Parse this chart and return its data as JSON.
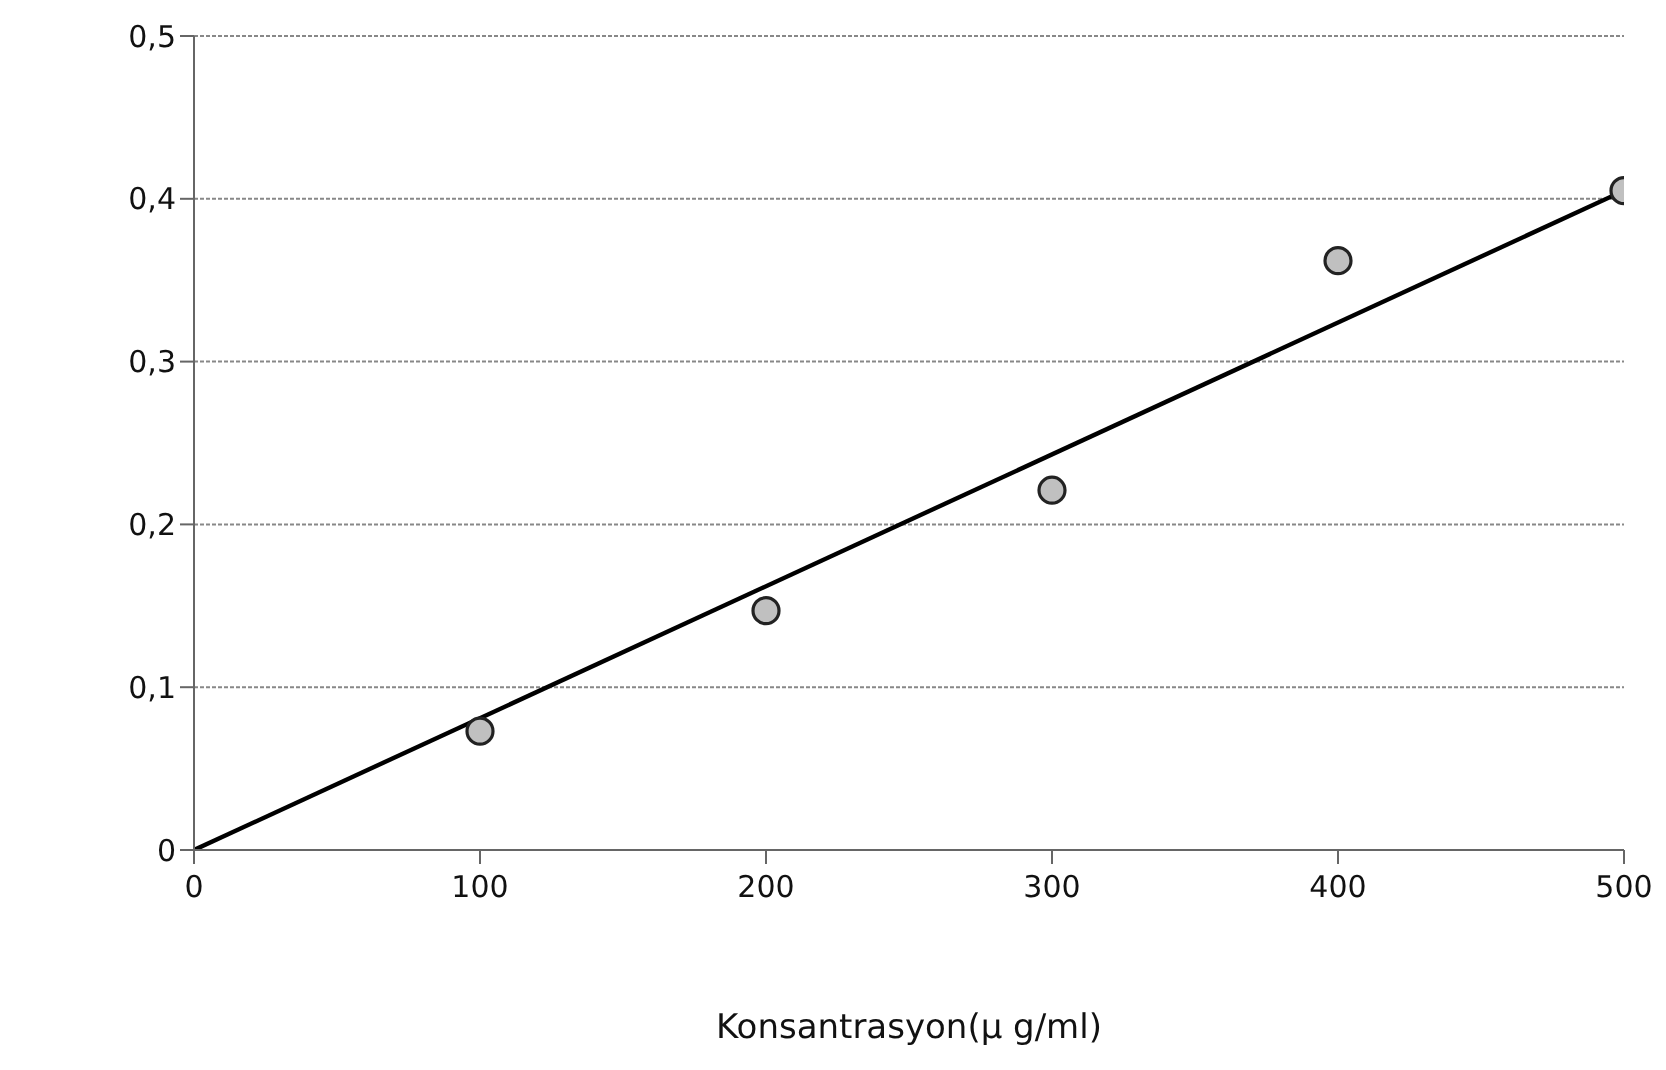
{
  "chart_data": {
    "type": "scatter",
    "xlabel": "Konsantrasyon(µ g/ml)",
    "x": [
      100,
      200,
      300,
      400,
      500
    ],
    "series": [
      {
        "color": "#c0c0c0",
        "marker": "circle",
        "values": [
          0.073,
          0.147,
          0.221,
          0.362,
          0.405
        ]
      },
      {
        "type": "line",
        "color": "#000000",
        "x": [
          0,
          500
        ],
        "values": [
          0,
          0.405
        ],
        "line_style": "solid"
      }
    ],
    "xlim": [
      0,
      500
    ],
    "xticks": [
      0,
      100,
      200,
      300,
      400,
      500
    ],
    "ylim": [
      0,
      0.5
    ],
    "yticks": [
      0,
      {
        "value": 0.1,
        "label": "0,1"
      },
      {
        "value": 0.2,
        "label": "0,2"
      },
      {
        "value": 0.3,
        "label": "0,3"
      },
      {
        "value": 0.4,
        "label": "0,4"
      },
      {
        "value": 0.5,
        "label": "0,5"
      }
    ],
    "grid": "y"
  }
}
